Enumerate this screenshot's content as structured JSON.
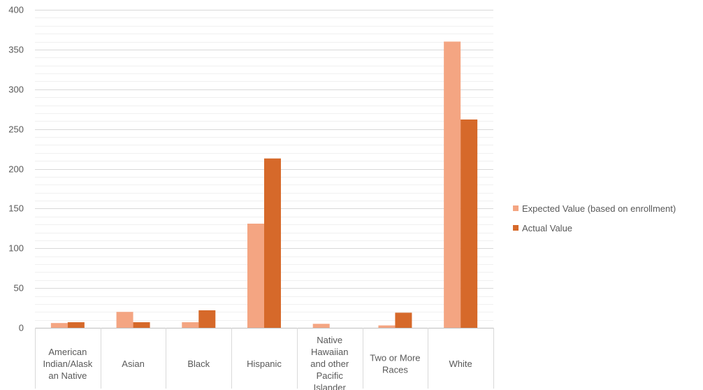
{
  "chart_data": {
    "type": "bar",
    "title": "",
    "xlabel": "",
    "ylabel": "",
    "ylim": [
      0,
      400
    ],
    "y_major_step": 50,
    "y_minor_step": 10,
    "grid": true,
    "legend_position": "right",
    "categories": [
      "American Indian/Alaskan Native",
      "Asian",
      "Black",
      "Hispanic",
      "Native Hawaiian and other Pacific Islander",
      "Two or More Races",
      "White"
    ],
    "category_label_lines": [
      [
        "American",
        "Indian/Alask",
        "an Native"
      ],
      [
        "Asian"
      ],
      [
        "Black"
      ],
      [
        "Hispanic"
      ],
      [
        "Native",
        "Hawaiian",
        "and other",
        "Pacific",
        "Islander"
      ],
      [
        "Two or More",
        "Races"
      ],
      [
        "White"
      ]
    ],
    "y_ticks": [
      "0",
      "50",
      "100",
      "150",
      "200",
      "250",
      "300",
      "350",
      "400"
    ],
    "series": [
      {
        "name": "Expected Value (based on enrollment)",
        "color": "#f4a582",
        "values": [
          6,
          20,
          7,
          131,
          5,
          3,
          360
        ]
      },
      {
        "name": "Actual Value",
        "color": "#d6692a",
        "values": [
          7,
          7,
          22,
          213,
          0,
          19,
          262
        ]
      }
    ]
  }
}
